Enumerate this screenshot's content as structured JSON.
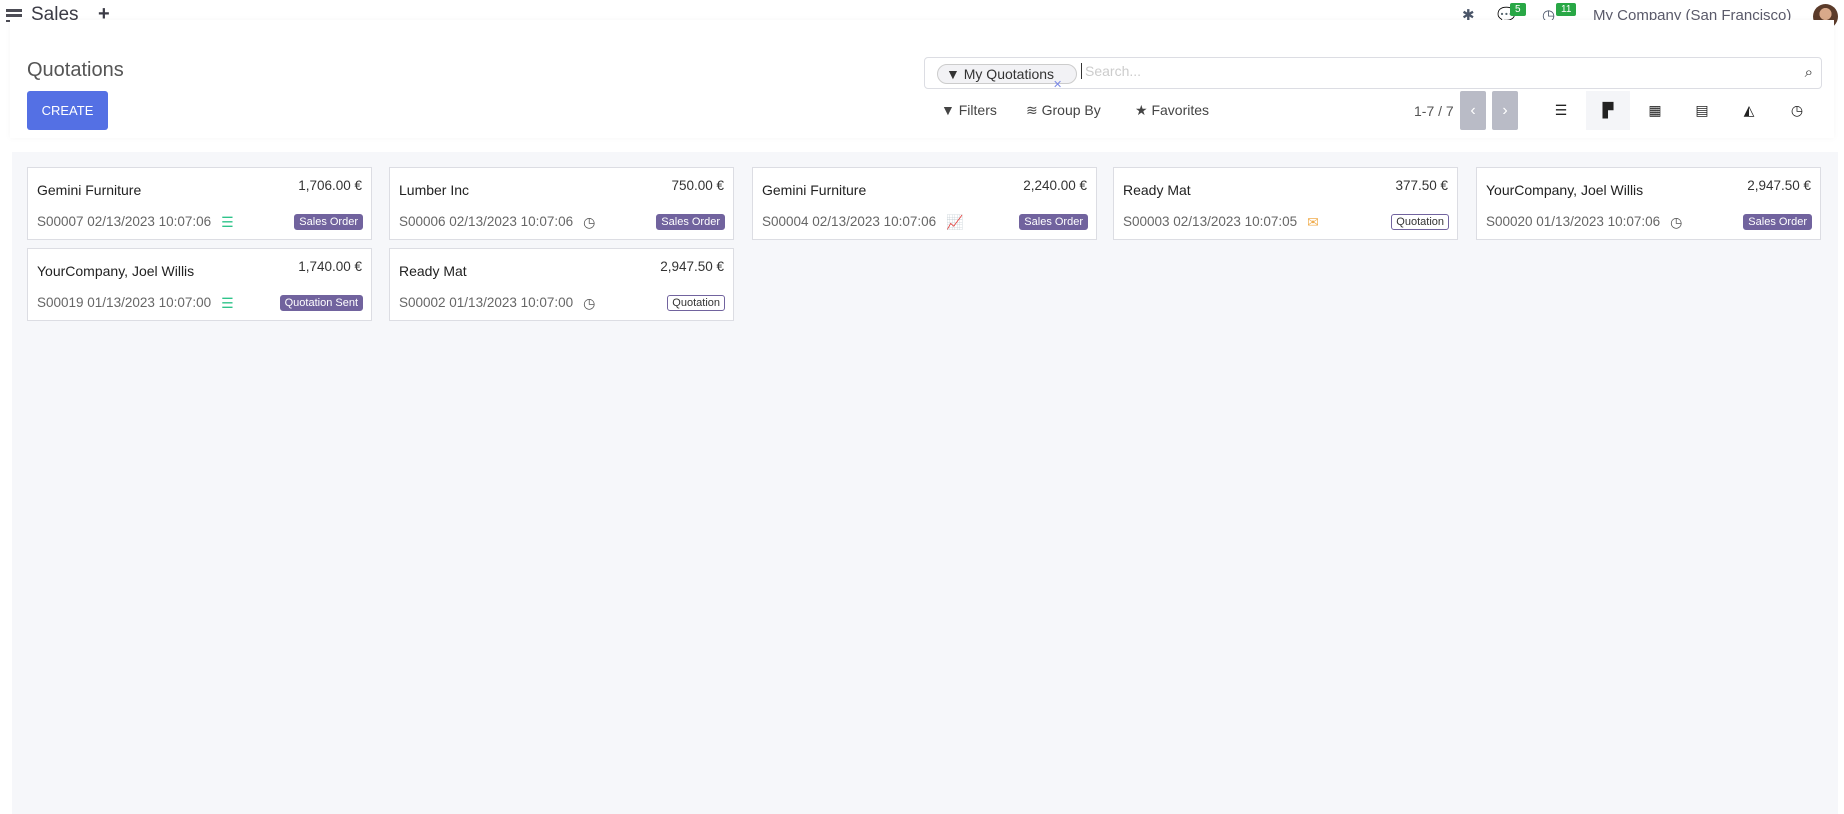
{
  "topbar": {
    "app": "Sales",
    "messages_count": "5",
    "activities_count": "11",
    "company": "My Company (San Francisco)"
  },
  "control": {
    "title": "Quotations",
    "create_label": "CREATE",
    "search": {
      "facet": "My Quotations",
      "placeholder": "Search..."
    },
    "filters": "Filters",
    "group_by": "Group By",
    "favorites": "Favorites",
    "pager": "1-7 / 7",
    "views": [
      "list",
      "kanban",
      "calendar",
      "pivot",
      "graph",
      "activity"
    ],
    "active_view": "kanban"
  },
  "colors": {
    "accent": "#5470e4",
    "state_badge": "#71639e",
    "badge": "#28a745"
  },
  "cards": [
    {
      "name": "Gemini Furniture",
      "amount": "1,706.00 €",
      "ref": "S00007 02/13/2023 10:07:06",
      "icon": "tasks-icon",
      "state": "Sales Order",
      "filled": true
    },
    {
      "name": "Lumber Inc",
      "amount": "750.00 €",
      "ref": "S00006 02/13/2023 10:07:06",
      "icon": "clock-icon",
      "state": "Sales Order",
      "filled": true
    },
    {
      "name": "Gemini Furniture",
      "amount": "2,240.00 €",
      "ref": "S00004 02/13/2023 10:07:06",
      "icon": "chart-up-icon",
      "state": "Sales Order",
      "filled": true
    },
    {
      "name": "Ready Mat",
      "amount": "377.50 €",
      "ref": "S00003 02/13/2023 10:07:05",
      "icon": "envelope-icon",
      "state": "Quotation",
      "filled": false
    },
    {
      "name": "YourCompany, Joel Willis",
      "amount": "2,947.50 €",
      "ref": "S00020 01/13/2023 10:07:06",
      "icon": "clock-icon",
      "state": "Sales Order",
      "filled": true
    },
    {
      "name": "YourCompany, Joel Willis",
      "amount": "1,740.00 €",
      "ref": "S00019 01/13/2023 10:07:00",
      "icon": "tasks-icon",
      "state": "Quotation Sent",
      "filled": true
    },
    {
      "name": "Ready Mat",
      "amount": "2,947.50 €",
      "ref": "S00002 01/13/2023 10:07:00",
      "icon": "clock-icon",
      "state": "Quotation",
      "filled": false
    }
  ]
}
